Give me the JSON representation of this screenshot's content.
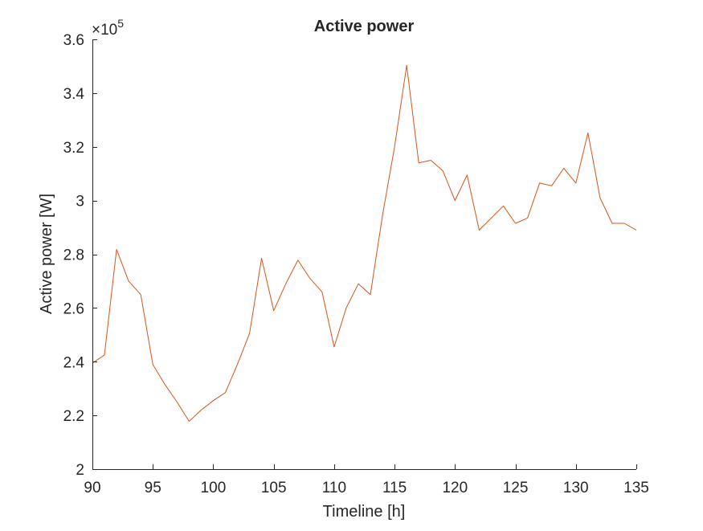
{
  "chart_data": {
    "type": "line",
    "title": "Active power",
    "xlabel": "Timeline [h]",
    "ylabel": "Active power [W]",
    "xlim": [
      90,
      135
    ],
    "ylim": [
      200000,
      360000
    ],
    "y_exponent_label": "×10",
    "y_exponent_power": "5",
    "xticks": [
      90,
      95,
      100,
      105,
      110,
      115,
      120,
      125,
      130,
      135
    ],
    "xtick_labels": [
      "90",
      "95",
      "100",
      "105",
      "110",
      "115",
      "120",
      "125",
      "130",
      "135"
    ],
    "yticks": [
      200000,
      220000,
      240000,
      260000,
      280000,
      300000,
      320000,
      340000,
      360000
    ],
    "ytick_labels": [
      "2",
      "2.2",
      "2.4",
      "2.6",
      "2.8",
      "3",
      "3.2",
      "3.4",
      "3.6"
    ],
    "grid": false,
    "series": [
      {
        "color": "#D95319",
        "x": [
          90,
          91,
          92,
          93,
          94,
          95,
          96,
          97,
          98,
          99,
          100,
          101,
          102,
          103,
          104,
          105,
          106,
          107,
          108,
          109,
          110,
          111,
          112,
          113,
          114,
          115,
          116,
          117,
          118,
          119,
          120,
          121,
          122,
          123,
          124,
          125,
          126,
          127,
          128,
          129,
          130,
          131,
          132,
          133,
          134,
          135
        ],
        "values": [
          239500,
          242500,
          281800,
          270000,
          265000,
          239000,
          231500,
          225000,
          217800,
          222000,
          225500,
          228500,
          239000,
          250500,
          278500,
          259000,
          269000,
          277800,
          271000,
          266000,
          245500,
          260000,
          269000,
          265000,
          294500,
          320000,
          350300,
          314000,
          315000,
          311000,
          300000,
          309500,
          289000,
          293500,
          298000,
          291500,
          293500,
          306500,
          305500,
          312000,
          306500,
          325200,
          301000,
          291500,
          291500,
          289000
        ]
      }
    ]
  }
}
